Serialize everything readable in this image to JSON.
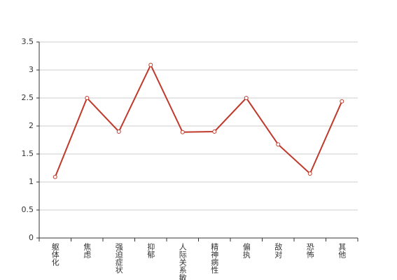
{
  "chart_data": {
    "type": "line",
    "categories": [
      "躯体化",
      "焦虑",
      "强迫症状",
      "抑郁",
      "人际关系敏感",
      "精神病性",
      "偏执",
      "敌对",
      "恐怖",
      "其他"
    ],
    "series": [
      {
        "color": "#c0392b",
        "values": [
          1.09,
          2.5,
          1.9,
          3.09,
          1.89,
          1.9,
          2.5,
          1.67,
          1.15,
          2.44
        ]
      }
    ],
    "ylim": [
      0,
      3.5
    ],
    "yticks": [
      0,
      0.5,
      1,
      1.5,
      2,
      2.5,
      3,
      3.5
    ],
    "grid": true
  }
}
